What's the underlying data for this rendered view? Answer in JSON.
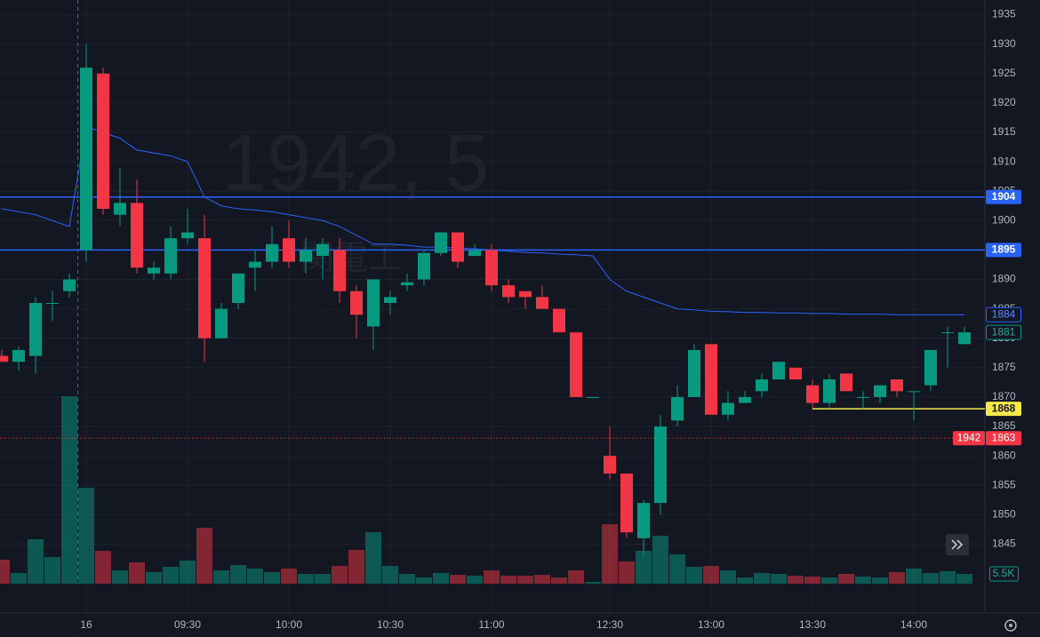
{
  "chart_data": {
    "type": "candlestick",
    "watermark": "1942, 5",
    "watermark_name": "関電工",
    "categories": [
      null,
      null,
      null,
      null,
      null,
      "16",
      null,
      null,
      null,
      null,
      null,
      "09:30",
      null,
      null,
      null,
      null,
      null,
      "10:00",
      null,
      null,
      null,
      null,
      null,
      "10:30",
      null,
      null,
      null,
      null,
      null,
      "11:00",
      null,
      null,
      null,
      null,
      null,
      null,
      "12:30",
      null,
      null,
      null,
      null,
      null,
      "13:00",
      null,
      null,
      null,
      null,
      null,
      "13:30",
      null,
      null,
      null,
      null,
      null,
      "14:00",
      null,
      null,
      null
    ],
    "open": [
      1877,
      1876,
      1877,
      1886,
      1888,
      1895,
      1925,
      1901,
      1903,
      1891,
      1891,
      1897,
      1897,
      1880,
      1886,
      1892,
      1893,
      1897,
      1893,
      1894,
      1895,
      1888,
      1882,
      1886,
      1889,
      1890,
      1894.5,
      1898,
      1894,
      1895,
      1889,
      1888,
      1887,
      1885,
      1881,
      1870,
      1860,
      1857,
      1846,
      1852,
      1866,
      1870,
      1879,
      1867,
      1869,
      1871,
      1873,
      1875,
      1872,
      1869,
      1874,
      1870,
      1870,
      1873,
      1871,
      1872,
      1881,
      1879
    ],
    "high": [
      1878,
      1878.5,
      1887,
      1888,
      1891,
      1930,
      1926,
      1909,
      1907,
      1893,
      1899,
      1902,
      1901,
      1886,
      1891,
      1895,
      1899,
      1900,
      1897,
      1897,
      1897,
      1889,
      1890,
      1888,
      1891,
      1895,
      1898,
      1898,
      1896,
      1896,
      1890,
      1888,
      1889,
      1885,
      1881,
      1870,
      1865,
      1857,
      1852.5,
      1867,
      1872,
      1879,
      1879,
      1871,
      1871,
      1874,
      1876,
      1875,
      1873,
      1874,
      1874,
      1871,
      1872,
      1873,
      1871,
      1878,
      1882,
      1882
    ],
    "low": [
      1876,
      1874.5,
      1874,
      1883,
      1887,
      1893,
      1901,
      1899,
      1891,
      1890,
      1890,
      1896,
      1876,
      1880,
      1885,
      1888,
      1892,
      1892,
      1891,
      1890,
      1886,
      1880,
      1878,
      1884,
      1888,
      1889,
      1894,
      1892,
      1894,
      1888,
      1886,
      1885,
      1885,
      1881,
      1870,
      1870,
      1856,
      1846,
      1843,
      1850,
      1865,
      1870,
      1867,
      1866,
      1869,
      1870,
      1873,
      1873,
      1868,
      1868,
      1871,
      1868,
      1869,
      1870,
      1866,
      1871,
      1875,
      1879
    ],
    "close": [
      1876,
      1878,
      1886,
      1886,
      1890,
      1926,
      1902,
      1903,
      1892,
      1892,
      1897,
      1898,
      1880,
      1885,
      1891,
      1893,
      1896,
      1893,
      1895,
      1896,
      1888,
      1884,
      1890,
      1887,
      1889.5,
      1894.5,
      1898,
      1893,
      1895,
      1889,
      1887,
      1887,
      1885,
      1881,
      1870,
      1870,
      1857,
      1847,
      1852,
      1865,
      1870,
      1878,
      1867,
      1869,
      1870,
      1873,
      1876,
      1873,
      1869,
      1873,
      1871,
      1870,
      1872,
      1871,
      1871,
      1878,
      1881,
      1881
    ],
    "volume": [
      13500,
      6000,
      25000,
      15000,
      105500,
      54000,
      18500,
      7500,
      12000,
      6500,
      9500,
      13000,
      31500,
      7500,
      10500,
      8500,
      6500,
      8500,
      5500,
      5500,
      10000,
      19000,
      29000,
      10000,
      5500,
      3500,
      6000,
      5000,
      4500,
      7500,
      4500,
      4500,
      5000,
      3500,
      7500,
      1000,
      33500,
      12500,
      18500,
      27000,
      16500,
      9500,
      10000,
      7500,
      3500,
      6000,
      5500,
      4500,
      4000,
      3500,
      5500,
      4000,
      3500,
      6500,
      8500,
      6000,
      7000,
      5500
    ],
    "volume_label": "5.5K",
    "vwap": [
      1902,
      1901.5,
      1901,
      1900,
      1899,
      1916,
      1915,
      1914,
      1912,
      1911.5,
      1911,
      1910,
      1904,
      1902.5,
      1902,
      1901.8,
      1901.5,
      1901,
      1900.5,
      1900,
      1899,
      1897.5,
      1896,
      1896,
      1895.8,
      1895.5,
      1895.5,
      1895.3,
      1895.2,
      1895,
      1894.8,
      1894.6,
      1894.5,
      1894.3,
      1894.2,
      1894,
      1890,
      1888,
      1887,
      1886,
      1885,
      1884.8,
      1884.6,
      1884.5,
      1884.4,
      1884.4,
      1884.3,
      1884.3,
      1884.2,
      1884.2,
      1884.1,
      1884.1,
      1884.1,
      1884,
      1884,
      1884,
      1884,
      1884
    ],
    "vwap_color": "#2962ff",
    "up_color": "#089981",
    "down_color": "#f23645",
    "ylim": [
      1842.2,
      1937.5
    ],
    "yticks": [
      1845,
      1850,
      1855,
      1860,
      1865,
      1870,
      1875,
      1880,
      1885,
      1890,
      1895,
      1900,
      1905,
      1910,
      1915,
      1920,
      1925,
      1930,
      1935
    ],
    "horizontal_lines": [
      {
        "value": 1904,
        "color": "#2962ff"
      },
      {
        "value": 1895,
        "color": "#2962ff"
      },
      {
        "value": 1868,
        "color": "#f5e84a"
      }
    ],
    "vwap_label": 1884,
    "last_price": 1881,
    "countdown_line": {
      "value": 1863,
      "symbol": "1942",
      "color": "#f23645"
    },
    "grid": true
  }
}
